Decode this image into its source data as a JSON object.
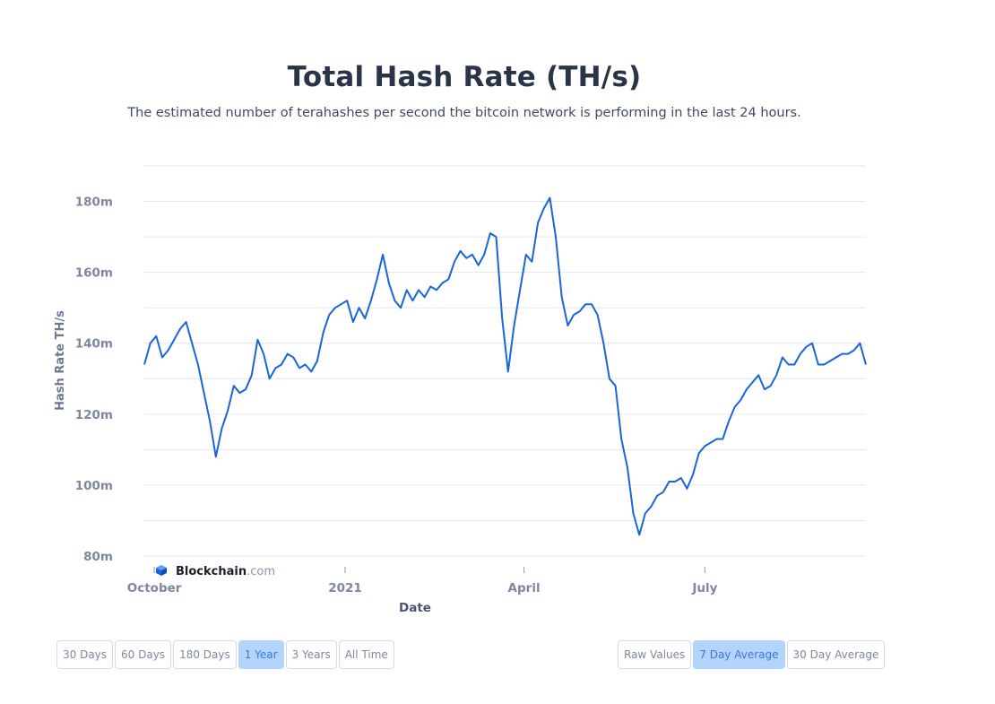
{
  "header": {
    "title": "Total Hash Rate (TH/s)",
    "subtitle": "The estimated number of terahashes per second the bitcoin network is performing in the last 24 hours."
  },
  "brand": {
    "name_bold": "Blockchain",
    "name_suffix": ".com",
    "icon": "blockchain-cube-icon"
  },
  "range_buttons": [
    {
      "label": "30 Days",
      "active": false
    },
    {
      "label": "60 Days",
      "active": false
    },
    {
      "label": "180 Days",
      "active": false
    },
    {
      "label": "1 Year",
      "active": true
    },
    {
      "label": "3 Years",
      "active": false
    },
    {
      "label": "All Time",
      "active": false
    }
  ],
  "avg_buttons": [
    {
      "label": "Raw Values",
      "active": false
    },
    {
      "label": "7 Day Average",
      "active": true
    },
    {
      "label": "30 Day Average",
      "active": false
    }
  ],
  "colors": {
    "line": "#1a66d9",
    "active_button_bg": "#b3d4fc",
    "active_button_text": "#3a78d8"
  },
  "chart_data": {
    "type": "line",
    "title": "Total Hash Rate (TH/s)",
    "xlabel": "Date",
    "ylabel": "Hash Rate TH/s",
    "x_tick_labels": [
      "October",
      "2021",
      "April",
      "July"
    ],
    "y_tick_labels": [
      "80m",
      "100m",
      "120m",
      "140m",
      "160m",
      "180m"
    ],
    "y_ticks": [
      80,
      100,
      120,
      140,
      160,
      180
    ],
    "ylim": [
      80,
      190
    ],
    "xlim": [
      "2020-09-22",
      "2021-09-20"
    ],
    "x_tick_dates": [
      "2020-09-27",
      "2021-01-01",
      "2021-04-01",
      "2021-07-01"
    ],
    "grid": true,
    "legend": "none",
    "series": [
      {
        "x": [
          "2020-09-22",
          "2020-09-25",
          "2020-09-28",
          "2020-10-01",
          "2020-10-04",
          "2020-10-07",
          "2020-10-10",
          "2020-10-13",
          "2020-10-16",
          "2020-10-19",
          "2020-10-22",
          "2020-10-25",
          "2020-10-28",
          "2020-10-31",
          "2020-11-03",
          "2020-11-06",
          "2020-11-09",
          "2020-11-12",
          "2020-11-15",
          "2020-11-18",
          "2020-11-21",
          "2020-11-24",
          "2020-11-27",
          "2020-11-30",
          "2020-12-03",
          "2020-12-06",
          "2020-12-09",
          "2020-12-12",
          "2020-12-15",
          "2020-12-18",
          "2020-12-21",
          "2020-12-24",
          "2020-12-27",
          "2020-12-30",
          "2021-01-02",
          "2021-01-05",
          "2021-01-08",
          "2021-01-11",
          "2021-01-14",
          "2021-01-17",
          "2021-01-20",
          "2021-01-23",
          "2021-01-26",
          "2021-01-29",
          "2021-02-01",
          "2021-02-04",
          "2021-02-07",
          "2021-02-10",
          "2021-02-13",
          "2021-02-16",
          "2021-02-19",
          "2021-02-22",
          "2021-02-25",
          "2021-02-28",
          "2021-03-03",
          "2021-03-06",
          "2021-03-09",
          "2021-03-12",
          "2021-03-15",
          "2021-03-18",
          "2021-03-21",
          "2021-03-24",
          "2021-03-27",
          "2021-03-30",
          "2021-04-02",
          "2021-04-05",
          "2021-04-08",
          "2021-04-11",
          "2021-04-14",
          "2021-04-17",
          "2021-04-20",
          "2021-04-23",
          "2021-04-26",
          "2021-04-29",
          "2021-05-02",
          "2021-05-05",
          "2021-05-08",
          "2021-05-11",
          "2021-05-14",
          "2021-05-17",
          "2021-05-20",
          "2021-05-23",
          "2021-05-26",
          "2021-05-29",
          "2021-06-01",
          "2021-06-04",
          "2021-06-07",
          "2021-06-10",
          "2021-06-13",
          "2021-06-16",
          "2021-06-19",
          "2021-06-22",
          "2021-06-25",
          "2021-06-28",
          "2021-07-01",
          "2021-07-04",
          "2021-07-07",
          "2021-07-10",
          "2021-07-13",
          "2021-07-16",
          "2021-07-19",
          "2021-07-22",
          "2021-07-25",
          "2021-07-28",
          "2021-07-31",
          "2021-08-03",
          "2021-08-06",
          "2021-08-09",
          "2021-08-12",
          "2021-08-15",
          "2021-08-18",
          "2021-08-21",
          "2021-08-24",
          "2021-08-27",
          "2021-08-30",
          "2021-09-02",
          "2021-09-05",
          "2021-09-08",
          "2021-09-11",
          "2021-09-14",
          "2021-09-17",
          "2021-09-20"
        ],
        "y": [
          134,
          140,
          142,
          136,
          138,
          141,
          144,
          146,
          140,
          134,
          126,
          118,
          108,
          116,
          121,
          128,
          126,
          127,
          131,
          141,
          137,
          130,
          133,
          134,
          137,
          136,
          133,
          134,
          132,
          135,
          143,
          148,
          150,
          151,
          152,
          146,
          150,
          147,
          152,
          158,
          165,
          157,
          152,
          150,
          155,
          152,
          155,
          153,
          156,
          155,
          157,
          158,
          163,
          166,
          164,
          165,
          162,
          165,
          171,
          170,
          147,
          132,
          145,
          155,
          165,
          163,
          174,
          178,
          181,
          170,
          153,
          145,
          148,
          149,
          151,
          151,
          148,
          140,
          130,
          128,
          113,
          105,
          92,
          86,
          92,
          94,
          97,
          98,
          101,
          101,
          102,
          99,
          103,
          109,
          111,
          112,
          113,
          113,
          118,
          122,
          124,
          127,
          129,
          131,
          127,
          128,
          131,
          136,
          134,
          134,
          137,
          139,
          140,
          134,
          134,
          135,
          136,
          137,
          137,
          138,
          140,
          134
        ]
      }
    ]
  }
}
